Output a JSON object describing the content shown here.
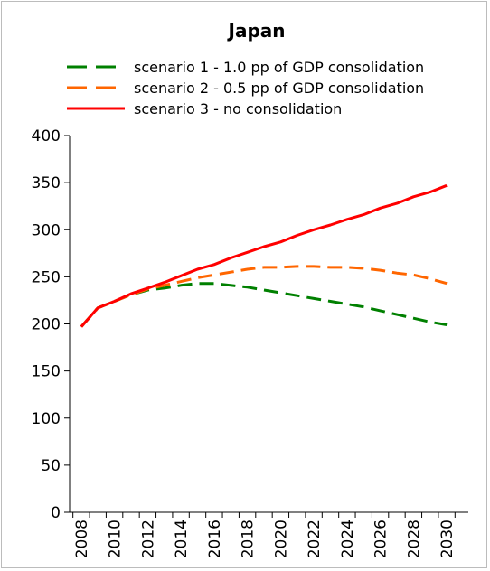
{
  "chart_data": {
    "type": "line",
    "title": "Japan",
    "xlabel": "",
    "ylabel": "",
    "ylim": [
      0,
      400
    ],
    "xlim": [
      2008,
      2030
    ],
    "yticks": [
      0,
      50,
      100,
      150,
      200,
      250,
      300,
      350,
      400
    ],
    "xticks": [
      2008,
      2010,
      2012,
      2014,
      2016,
      2018,
      2020,
      2022,
      2024,
      2026,
      2028,
      2030
    ],
    "grid": false,
    "legend_position": "top",
    "x": [
      2008,
      2009,
      2010,
      2011,
      2012,
      2013,
      2014,
      2015,
      2016,
      2017,
      2018,
      2019,
      2020,
      2021,
      2022,
      2023,
      2024,
      2025,
      2026,
      2027,
      2028,
      2029,
      2030
    ],
    "series": [
      {
        "name": "scenario 1 - 1.0 pp of GDP consolidation",
        "color": "#008000",
        "dash": "dashed",
        "values": [
          197,
          217,
          224,
          231,
          236,
          238,
          241,
          243,
          243,
          241,
          239,
          236,
          233,
          230,
          227,
          224,
          221,
          218,
          214,
          210,
          206,
          202,
          199
        ]
      },
      {
        "name": "scenario 2 - 0.5 pp of GDP consolidation",
        "color": "#ff6600",
        "dash": "dashed",
        "values": [
          197,
          217,
          224,
          231,
          237,
          241,
          245,
          249,
          252,
          255,
          258,
          260,
          260,
          261,
          261,
          260,
          260,
          259,
          257,
          254,
          252,
          248,
          243
        ]
      },
      {
        "name": "scenario 3 - no consolidation",
        "color": "#ff0000",
        "dash": "solid",
        "values": [
          197,
          217,
          224,
          232,
          238,
          244,
          251,
          258,
          263,
          270,
          276,
          282,
          287,
          294,
          300,
          305,
          311,
          316,
          323,
          328,
          335,
          340,
          347
        ]
      }
    ]
  }
}
